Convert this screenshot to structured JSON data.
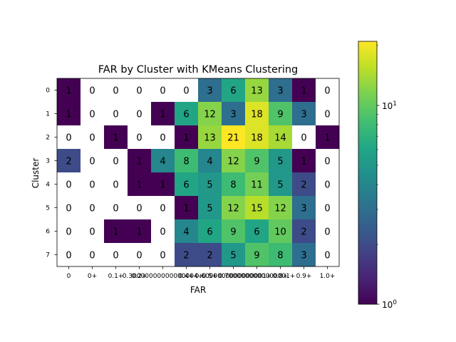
{
  "chart_data": {
    "type": "heatmap",
    "title": "FAR by Cluster with KMeans Clustering",
    "xlabel": "FAR",
    "ylabel": "Cluster",
    "x_categories": [
      "0",
      "0+",
      "0.1+",
      "0.2+",
      "0.30000000000000004+",
      "0.4+",
      "0.5+",
      "0.6000000000000001+",
      "0.7000000000000001+",
      "0.8+",
      "0.9+",
      "1.0+"
    ],
    "y_categories": [
      "0",
      "1",
      "2",
      "3",
      "4",
      "5",
      "6",
      "7"
    ],
    "values": [
      [
        1,
        0,
        0,
        0,
        0,
        0,
        3,
        6,
        13,
        3,
        1,
        0
      ],
      [
        1,
        0,
        0,
        0,
        1,
        6,
        12,
        3,
        18,
        9,
        3,
        0
      ],
      [
        0,
        0,
        1,
        0,
        0,
        1,
        13,
        21,
        18,
        14,
        0,
        1
      ],
      [
        2,
        0,
        0,
        1,
        4,
        8,
        4,
        12,
        9,
        5,
        1,
        0
      ],
      [
        0,
        0,
        0,
        1,
        1,
        6,
        5,
        8,
        11,
        5,
        2,
        0
      ],
      [
        0,
        0,
        0,
        0,
        0,
        1,
        5,
        12,
        15,
        12,
        3,
        0
      ],
      [
        0,
        0,
        1,
        1,
        0,
        4,
        6,
        9,
        6,
        10,
        2,
        0
      ],
      [
        0,
        0,
        0,
        0,
        0,
        2,
        2,
        5,
        9,
        8,
        3,
        0
      ]
    ],
    "zero_color": "#ffffff",
    "colormap": "viridis",
    "color_scale": "log",
    "color_range": [
      1,
      21
    ],
    "colorbar": {
      "major_ticks": [
        {
          "value": 1,
          "base": "10",
          "exp": "0"
        },
        {
          "value": 10,
          "base": "10",
          "exp": "1"
        }
      ],
      "minor_ticks": [
        2,
        3,
        4,
        5,
        6,
        7,
        8,
        9,
        20
      ]
    }
  }
}
